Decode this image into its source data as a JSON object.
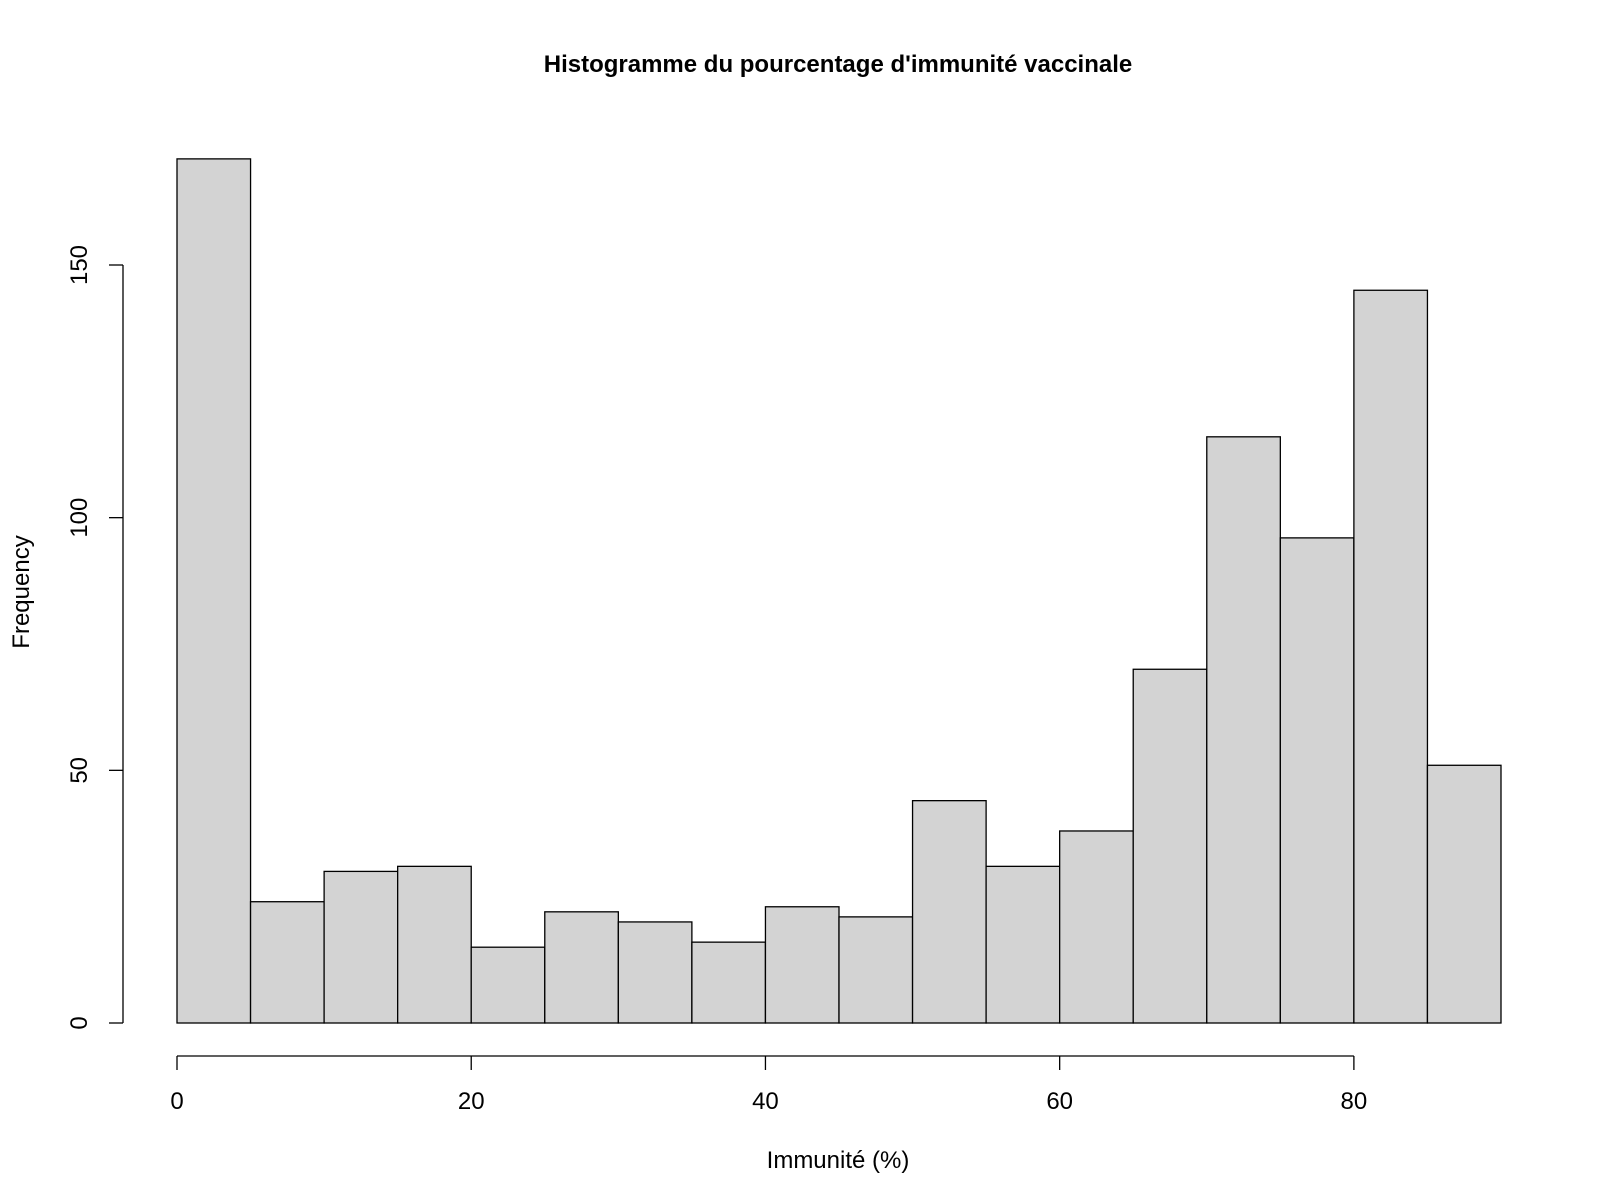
{
  "chart_data": {
    "type": "bar",
    "title": "Histogramme du pourcentage d'immunité vaccinale",
    "xlabel": "Immunité (%)",
    "ylabel": "Frequency",
    "bin_edges": [
      0,
      5,
      10,
      15,
      20,
      25,
      30,
      35,
      40,
      45,
      50,
      55,
      60,
      65,
      70,
      75,
      80,
      85,
      90
    ],
    "values": [
      171,
      24,
      30,
      31,
      15,
      22,
      20,
      16,
      23,
      21,
      44,
      31,
      38,
      70,
      116,
      96,
      145,
      51
    ],
    "xlim": [
      0,
      90
    ],
    "ylim": [
      0,
      171
    ],
    "x_ticks": [
      0,
      20,
      40,
      60,
      80
    ],
    "y_ticks": [
      0,
      50,
      100,
      150
    ],
    "x_tick_labels": [
      "0",
      "20",
      "40",
      "60",
      "80"
    ],
    "y_tick_labels": [
      "0",
      "50",
      "100",
      "150"
    ],
    "grid": false,
    "bar_color": "#d3d3d3",
    "edge_color": "#000000"
  }
}
